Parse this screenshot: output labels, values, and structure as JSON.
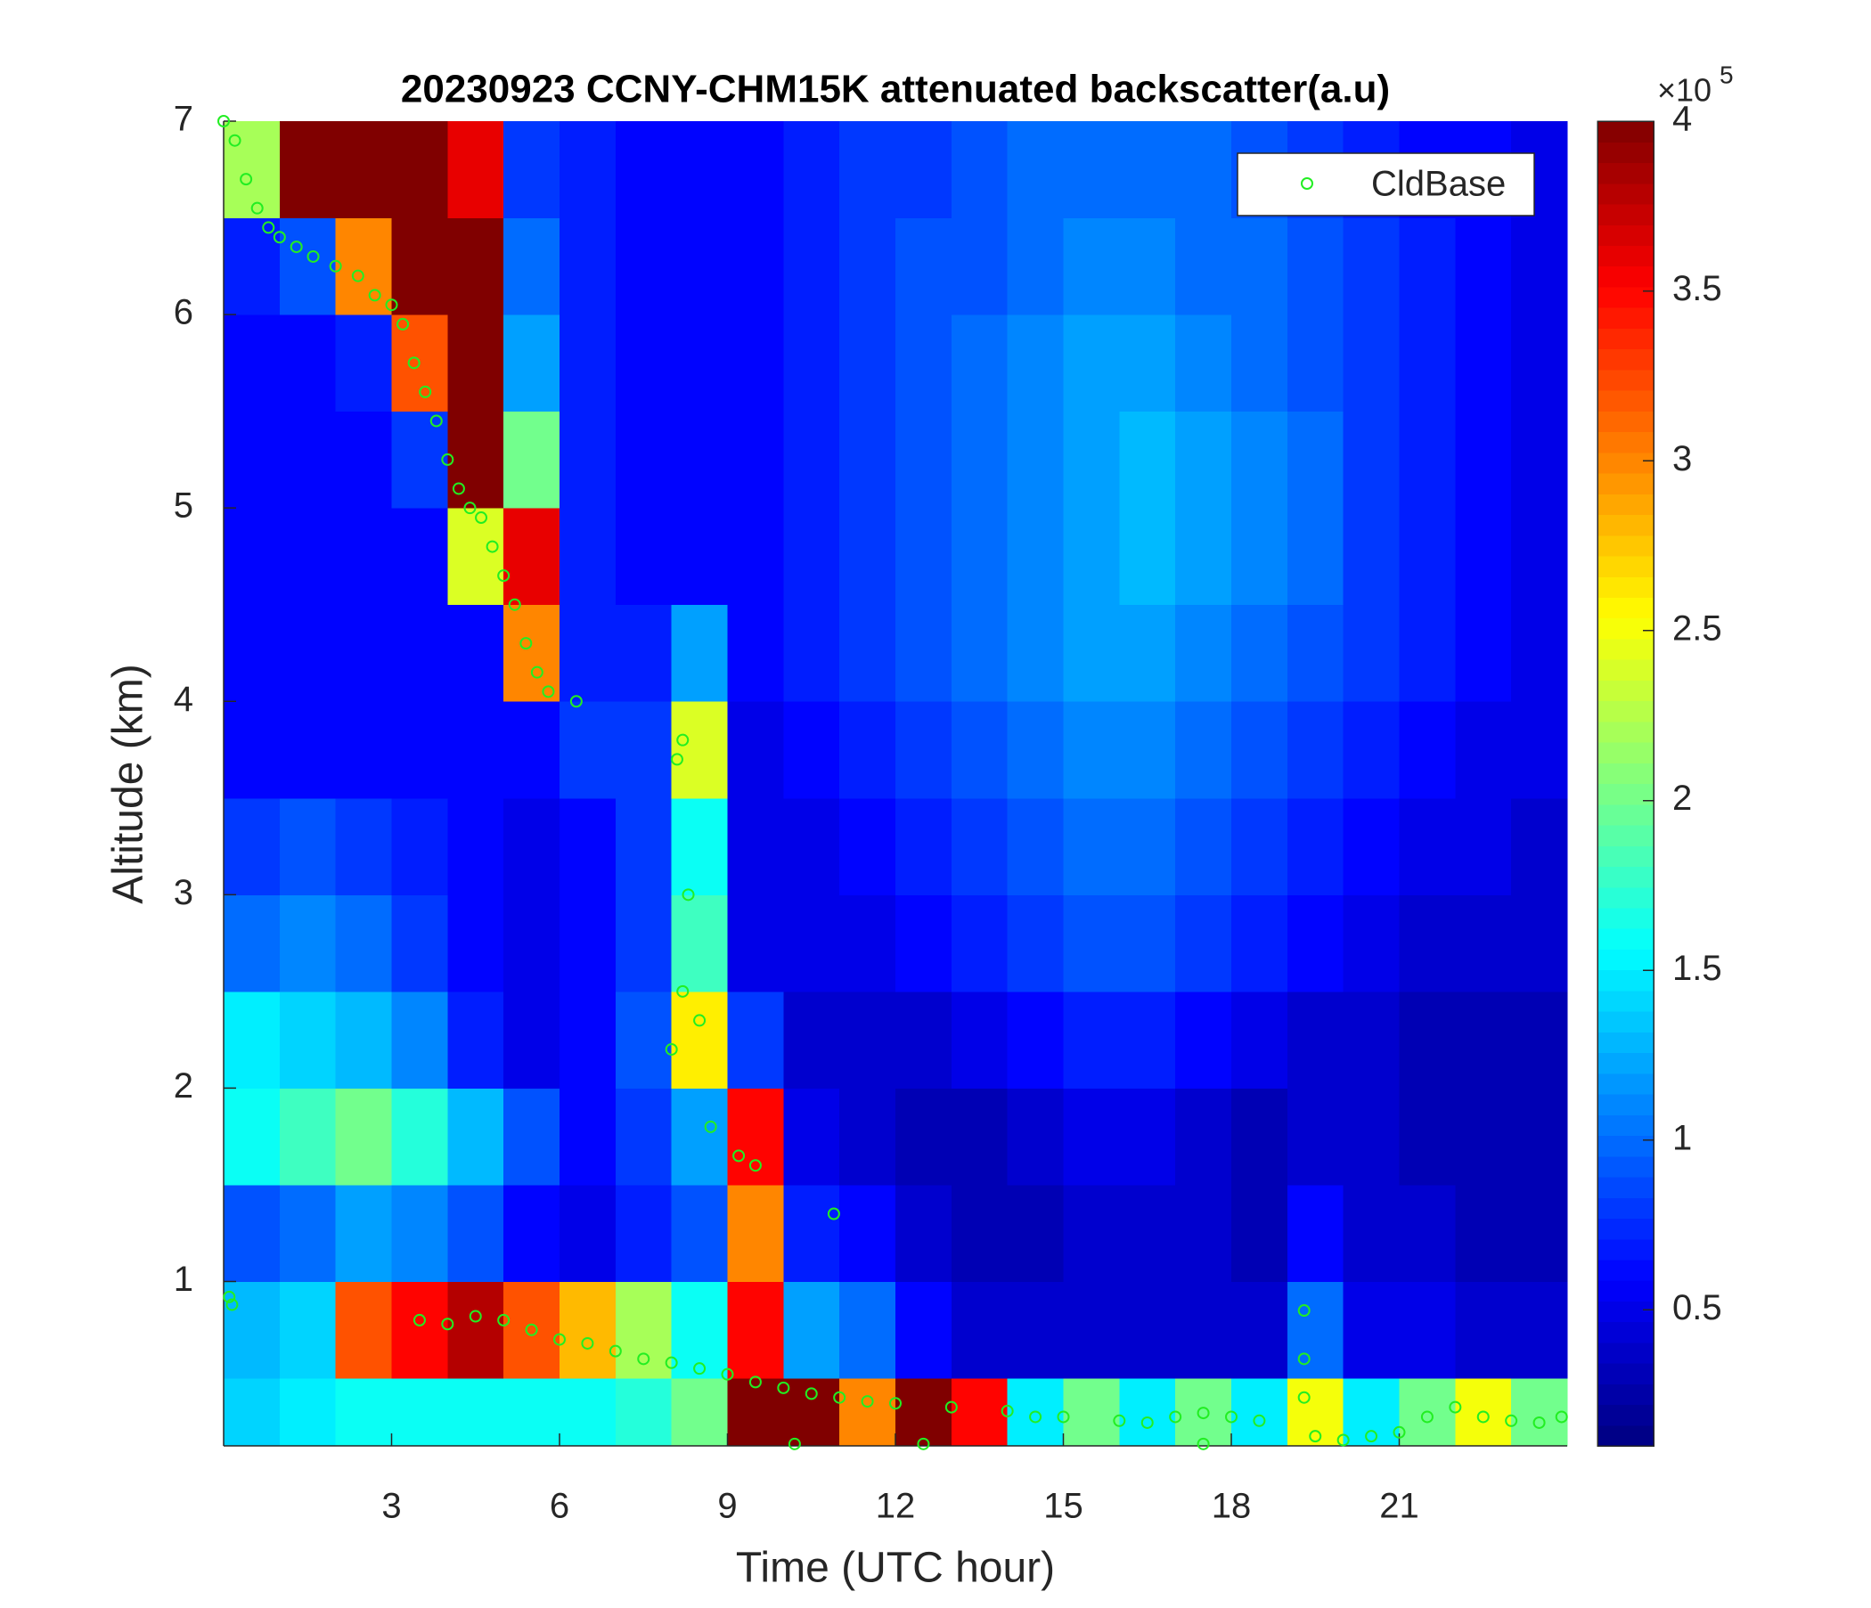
{
  "chart_data": {
    "type": "heatmap",
    "title": "20230923 CCNY-CHM15K attenuated backscatter(a.u)",
    "x_label": "Time (UTC hour)",
    "y_label": "Altitude (km)",
    "xlim": [
      0,
      24
    ],
    "ylim": [
      0.15,
      7
    ],
    "xticks": [
      3,
      6,
      9,
      12,
      15,
      18,
      21
    ],
    "yticks": [
      1,
      2,
      3,
      4,
      5,
      6,
      7
    ],
    "colormap": "jet",
    "clim": [
      0.1,
      4
    ],
    "colorbar_ticks": [
      0.5,
      1,
      1.5,
      2,
      2.5,
      3,
      3.5,
      4
    ],
    "colorbar_multiplier": "×10",
    "colorbar_multiplier_exponent": "5",
    "legend": "upper right",
    "x_edges": [
      0,
      1,
      2,
      3,
      4,
      5,
      6,
      7,
      8,
      9,
      10,
      11,
      12,
      13,
      14,
      15,
      16,
      17,
      18,
      19,
      20,
      21,
      22,
      23,
      24
    ],
    "y_edges": [
      0.15,
      0.5,
      1,
      1.5,
      2,
      2.5,
      3,
      3.5,
      4,
      4.5,
      5,
      5.5,
      6,
      6.5,
      7
    ],
    "z": [
      [
        1.4,
        1.5,
        1.6,
        1.6,
        1.6,
        1.6,
        1.6,
        1.7,
        2.0,
        4,
        4,
        3,
        4,
        3.5,
        1.5,
        2,
        1.5,
        2,
        1.5,
        2.5,
        1.5,
        2,
        2.5,
        2
      ],
      [
        1.3,
        1.4,
        3.2,
        3.5,
        3.8,
        3.2,
        2.8,
        2.2,
        1.6,
        3.5,
        1.2,
        1.0,
        0.6,
        0.4,
        0.4,
        0.4,
        0.4,
        0.4,
        0.4,
        1.0,
        0.5,
        0.5,
        0.4,
        0.4
      ],
      [
        0.9,
        1.0,
        1.2,
        1.1,
        0.9,
        0.6,
        0.5,
        0.7,
        0.9,
        3.0,
        0.7,
        0.6,
        0.4,
        0.3,
        0.3,
        0.4,
        0.4,
        0.4,
        0.3,
        0.6,
        0.4,
        0.4,
        0.3,
        0.3
      ],
      [
        1.6,
        1.8,
        2.0,
        1.7,
        1.3,
        0.9,
        0.6,
        0.8,
        1.2,
        3.5,
        0.5,
        0.4,
        0.3,
        0.3,
        0.4,
        0.5,
        0.5,
        0.4,
        0.3,
        0.4,
        0.4,
        0.3,
        0.3,
        0.3
      ],
      [
        1.5,
        1.4,
        1.3,
        1.1,
        0.7,
        0.5,
        0.6,
        0.9,
        2.6,
        0.8,
        0.4,
        0.4,
        0.4,
        0.5,
        0.6,
        0.7,
        0.7,
        0.6,
        0.5,
        0.4,
        0.4,
        0.3,
        0.3,
        0.3
      ],
      [
        1.0,
        1.1,
        1.0,
        0.8,
        0.6,
        0.5,
        0.6,
        0.8,
        1.8,
        0.5,
        0.5,
        0.5,
        0.6,
        0.7,
        0.8,
        0.9,
        0.9,
        0.8,
        0.7,
        0.6,
        0.5,
        0.4,
        0.4,
        0.4
      ],
      [
        0.8,
        0.9,
        0.8,
        0.7,
        0.6,
        0.5,
        0.6,
        0.8,
        1.6,
        0.5,
        0.5,
        0.6,
        0.7,
        0.8,
        0.9,
        1.0,
        1.0,
        0.9,
        0.8,
        0.7,
        0.6,
        0.5,
        0.5,
        0.4
      ],
      [
        0.6,
        0.6,
        0.6,
        0.6,
        0.6,
        0.6,
        0.8,
        0.8,
        2.4,
        0.5,
        0.6,
        0.7,
        0.8,
        0.9,
        1.0,
        1.1,
        1.1,
        1.0,
        0.9,
        0.8,
        0.7,
        0.6,
        0.5,
        0.5
      ],
      [
        0.6,
        0.6,
        0.6,
        0.6,
        0.6,
        3.0,
        0.7,
        0.7,
        1.2,
        0.6,
        0.7,
        0.8,
        0.9,
        1.0,
        1.1,
        1.2,
        1.2,
        1.1,
        1.0,
        0.9,
        0.8,
        0.7,
        0.6,
        0.5
      ],
      [
        0.6,
        0.6,
        0.6,
        0.6,
        2.4,
        3.6,
        0.7,
        0.6,
        0.6,
        0.6,
        0.7,
        0.8,
        0.9,
        1.0,
        1.1,
        1.2,
        1.3,
        1.2,
        1.1,
        1.0,
        0.8,
        0.7,
        0.6,
        0.5
      ],
      [
        0.6,
        0.6,
        0.6,
        0.8,
        4,
        2.0,
        0.7,
        0.6,
        0.6,
        0.6,
        0.7,
        0.8,
        0.9,
        1.0,
        1.1,
        1.2,
        1.3,
        1.2,
        1.1,
        1.0,
        0.8,
        0.7,
        0.6,
        0.5
      ],
      [
        0.6,
        0.6,
        0.7,
        3.2,
        4,
        1.2,
        0.7,
        0.6,
        0.6,
        0.6,
        0.7,
        0.8,
        0.9,
        1.0,
        1.1,
        1.2,
        1.2,
        1.1,
        1.0,
        0.9,
        0.8,
        0.7,
        0.6,
        0.5
      ],
      [
        0.7,
        0.9,
        3.0,
        4,
        4,
        1.0,
        0.7,
        0.6,
        0.6,
        0.6,
        0.7,
        0.8,
        0.9,
        0.9,
        1.0,
        1.1,
        1.1,
        1.0,
        1.0,
        0.9,
        0.8,
        0.7,
        0.6,
        0.5
      ],
      [
        2.2,
        4,
        4,
        4,
        3.6,
        0.8,
        0.7,
        0.6,
        0.6,
        0.6,
        0.7,
        0.8,
        0.8,
        0.9,
        1.0,
        1.0,
        1.0,
        1.0,
        0.9,
        0.8,
        0.7,
        0.6,
        0.6,
        0.5
      ]
    ],
    "series": [
      {
        "name": "CldBase",
        "color": "#22ee22",
        "x": [
          0,
          0.2,
          0.4,
          0.6,
          0.8,
          1.0,
          1.3,
          1.6,
          2.0,
          2.4,
          2.7,
          3.0,
          3.2,
          3.4,
          3.6,
          3.8,
          4.0,
          4.2,
          4.4,
          4.6,
          4.8,
          5.0,
          5.2,
          5.4,
          5.6,
          5.8,
          6.3,
          0.1,
          0.15,
          3.5,
          4.0,
          4.5,
          5.0,
          5.5,
          6.0,
          6.5,
          7.0,
          7.5,
          8.0,
          8.2,
          8.1,
          8.3,
          8.2,
          8.0,
          8.5,
          8.7,
          9.2,
          9.5,
          8.5,
          9.0,
          9.5,
          10.0,
          10.5,
          11.0,
          10.9,
          11.5,
          12.0,
          13.0,
          14.0,
          14.5,
          15.0,
          16.0,
          16.5,
          17.0,
          17.5,
          18.0,
          18.5,
          19.3,
          19.3,
          19.3,
          19.5,
          20.0,
          20.5,
          21.0,
          21.5,
          22.0,
          22.5,
          23.0,
          23.5,
          23.9,
          10.2,
          12.5,
          17.5
        ],
        "y": [
          7,
          6.9,
          6.7,
          6.55,
          6.45,
          6.4,
          6.35,
          6.3,
          6.25,
          6.2,
          6.1,
          6.05,
          5.95,
          5.75,
          5.6,
          5.45,
          5.25,
          5.1,
          5.0,
          4.95,
          4.8,
          4.65,
          4.5,
          4.3,
          4.15,
          4.05,
          4.0,
          0.92,
          0.88,
          0.8,
          0.78,
          0.82,
          0.8,
          0.75,
          0.7,
          0.68,
          0.64,
          0.6,
          0.58,
          3.8,
          3.7,
          3.0,
          2.5,
          2.2,
          2.35,
          1.8,
          1.65,
          1.6,
          0.55,
          0.52,
          0.48,
          0.45,
          0.42,
          0.4,
          1.35,
          0.38,
          0.37,
          0.35,
          0.33,
          0.3,
          0.3,
          0.28,
          0.27,
          0.3,
          0.32,
          0.3,
          0.28,
          0.85,
          0.6,
          0.4,
          0.2,
          0.18,
          0.2,
          0.22,
          0.3,
          0.35,
          0.3,
          0.28,
          0.27,
          0.3,
          0.16,
          0.16,
          0.16
        ]
      }
    ]
  }
}
